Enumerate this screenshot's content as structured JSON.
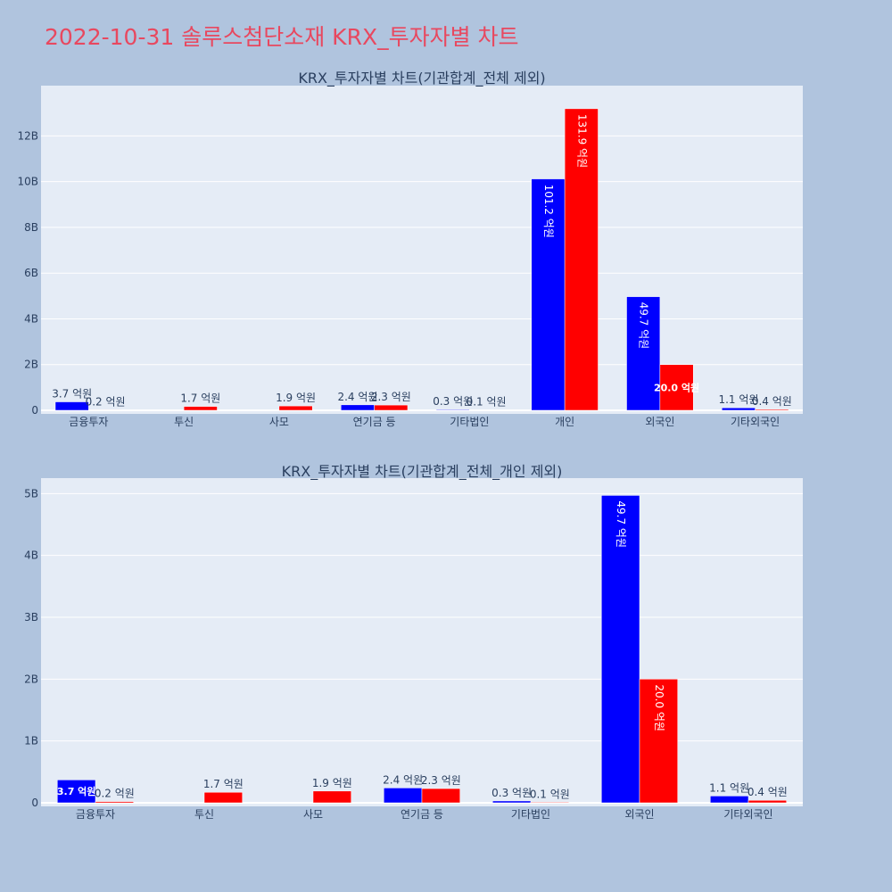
{
  "title": "2022-10-31 솔루스첨단소재 KRX_투자자별 차트",
  "colors": {
    "buy": "#0000ff",
    "sell": "#ff0000",
    "plot_bg": "#e5ecf6",
    "page_bg": "#b0c4de",
    "title": "#e8485f"
  },
  "chart_data": [
    {
      "type": "bar",
      "title": "KRX_투자자별 차트(기관합계_전체 제외)",
      "categories": [
        "금융투자",
        "투신",
        "사모",
        "연기금 등",
        "기타법인",
        "개인",
        "외국인",
        "기타외국인"
      ],
      "series": [
        {
          "color": "#0000ff",
          "values": [
            0.37,
            0.0,
            0.0,
            0.24,
            0.03,
            10.12,
            4.97,
            0.11
          ],
          "labels": [
            "3.7 억원",
            "",
            "",
            "2.4 억원",
            "0.3 억원",
            "101.2 억원",
            "49.7 억원",
            "1.1 억원"
          ]
        },
        {
          "color": "#ff0000",
          "values": [
            0.02,
            0.17,
            0.19,
            0.23,
            0.01,
            13.19,
            2.0,
            0.04
          ],
          "labels": [
            "0.2 억원",
            "1.7 억원",
            "1.9 억원",
            "2.3 억원",
            "0.1 억원",
            "131.9 억원",
            "20.0 억원",
            "0.4 억원"
          ]
        }
      ],
      "ylim": [
        0,
        14.2
      ],
      "yticks": [
        0,
        2,
        4,
        6,
        8,
        10,
        12
      ],
      "ytick_labels": [
        "0",
        "2B",
        "4B",
        "6B",
        "8B",
        "10B",
        "12B"
      ],
      "grid": true
    },
    {
      "type": "bar",
      "title": "KRX_투자자별 차트(기관합계_전체_개인 제외)",
      "categories": [
        "금융투자",
        "투신",
        "사모",
        "연기금 등",
        "기타법인",
        "외국인",
        "기타외국인"
      ],
      "series": [
        {
          "color": "#0000ff",
          "values": [
            0.37,
            0.0,
            0.0,
            0.24,
            0.03,
            4.97,
            0.11
          ],
          "labels": [
            "3.7 억원",
            "",
            "",
            "2.4 억원",
            "0.3 억원",
            "49.7 억원",
            "1.1 억원"
          ]
        },
        {
          "color": "#ff0000",
          "values": [
            0.02,
            0.17,
            0.19,
            0.23,
            0.01,
            2.0,
            0.04
          ],
          "labels": [
            "0.2 억원",
            "1.7 억원",
            "1.9 억원",
            "2.3 억원",
            "0.1 억원",
            "20.0 억원",
            "0.4 억원"
          ]
        }
      ],
      "ylim": [
        0,
        5.25
      ],
      "yticks": [
        0,
        1,
        2,
        3,
        4,
        5
      ],
      "ytick_labels": [
        "0",
        "1B",
        "2B",
        "3B",
        "4B",
        "5B"
      ],
      "grid": true
    }
  ]
}
